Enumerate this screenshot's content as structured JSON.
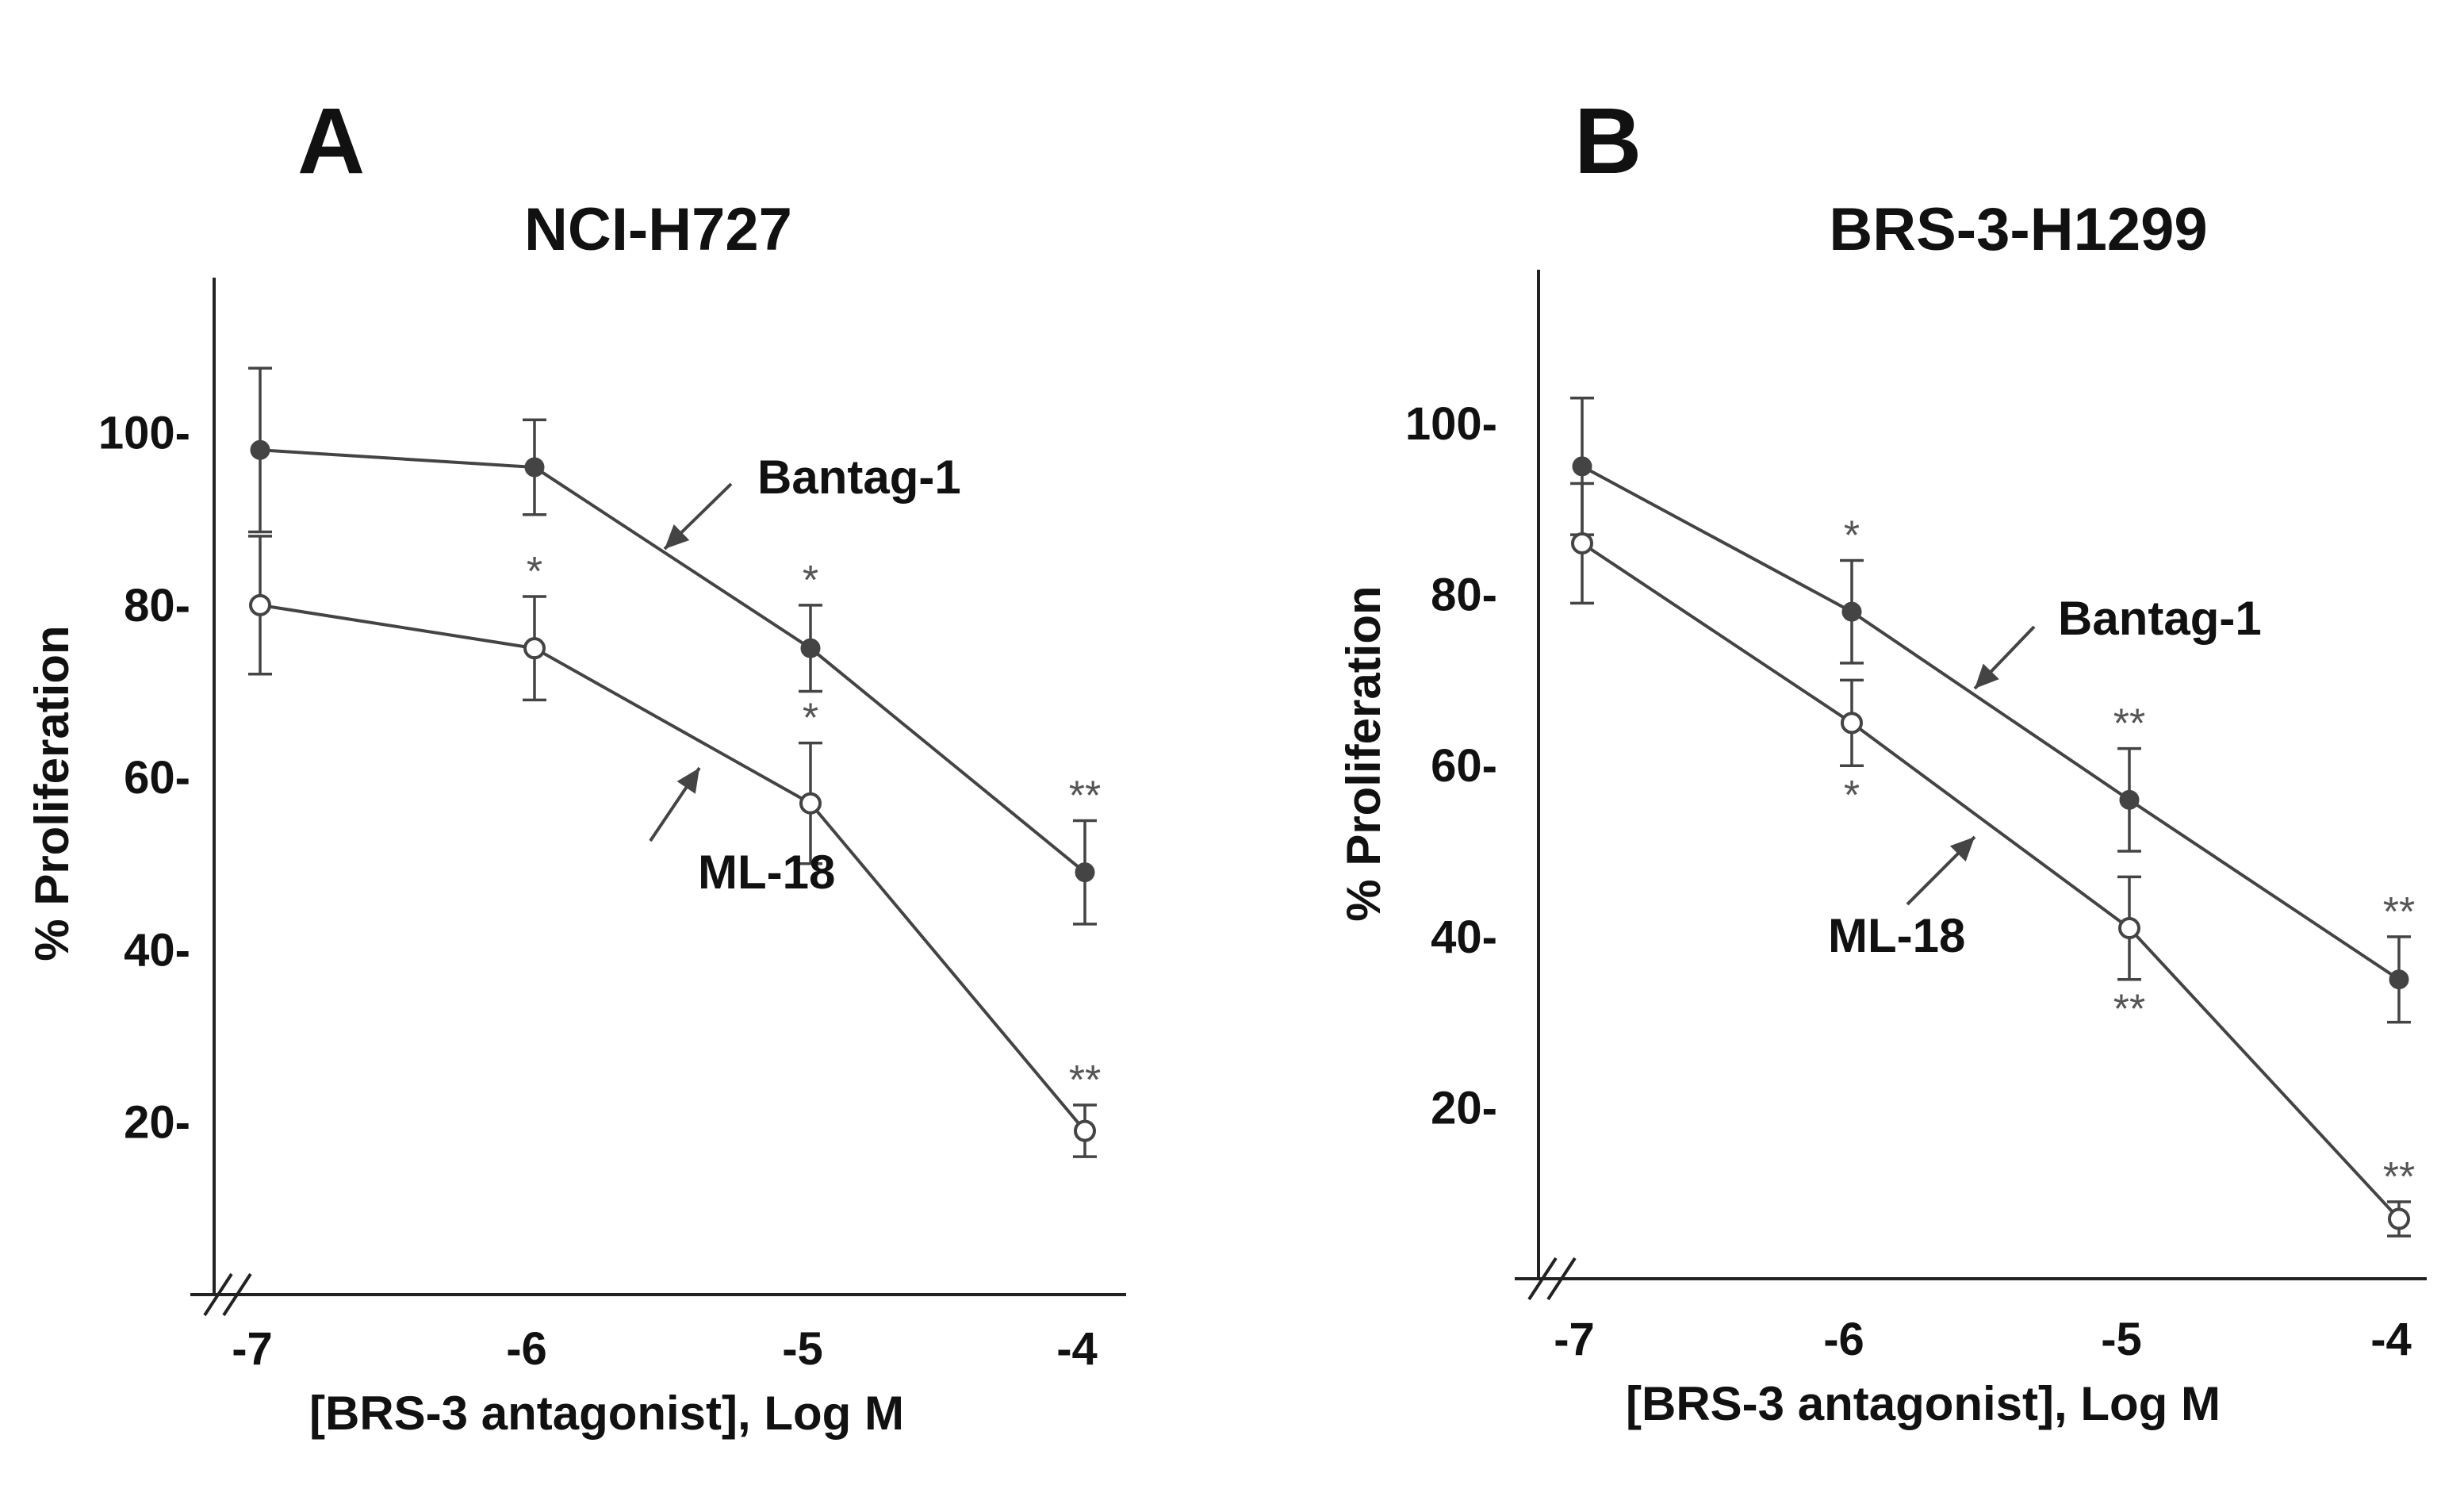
{
  "colors": {
    "line": "#444444",
    "axis": "#222222",
    "text": "#111111",
    "sig": "#555555"
  },
  "chart_data": [
    {
      "type": "line",
      "panel": "A",
      "title": "NCI-H727",
      "xlabel": "[BRS-3 antagonist], Log M",
      "ylabel": "% Proliferation",
      "x": [
        -7,
        -6,
        -5,
        -4
      ],
      "xticks": [
        "-7",
        "-6",
        "-5",
        "-4"
      ],
      "yticks": [
        "20-",
        "40-",
        "60-",
        "80-",
        "100-"
      ],
      "ytick_values": [
        20,
        40,
        60,
        80,
        100
      ],
      "xlim": [
        -7.15,
        -3.8
      ],
      "ylim": [
        0,
        118
      ],
      "axis_break": true,
      "series": [
        {
          "name": "Bantag-1",
          "marker": "filled",
          "values": [
            98,
            96,
            75,
            49
          ],
          "errors": [
            9.5,
            5.5,
            5,
            6
          ],
          "significance": [
            "",
            "",
            "*",
            "**"
          ]
        },
        {
          "name": "ML-18",
          "marker": "open",
          "values": [
            80,
            75,
            57,
            19
          ],
          "errors": [
            8,
            6,
            7,
            3
          ],
          "significance": [
            "",
            "*",
            "*",
            "**"
          ]
        }
      ]
    },
    {
      "type": "line",
      "panel": "B",
      "title": "BRS-3-H1299",
      "xlabel": "[BRS-3 antagonist], Log M",
      "ylabel": "% Proliferation",
      "x": [
        -7,
        -6,
        -5,
        -4
      ],
      "xticks": [
        "-7",
        "-6",
        "-5",
        "-4"
      ],
      "yticks": [
        "20-",
        "40-",
        "60-",
        "80-",
        "100-"
      ],
      "ytick_values": [
        20,
        40,
        60,
        80,
        100
      ],
      "xlim": [
        -7.15,
        -3.8
      ],
      "ylim": [
        0,
        118
      ],
      "axis_break": true,
      "series": [
        {
          "name": "Bantag-1",
          "marker": "filled",
          "values": [
            95,
            78,
            56,
            35
          ],
          "errors": [
            8,
            6,
            6,
            5
          ],
          "significance": [
            "",
            "*",
            "**",
            "**"
          ]
        },
        {
          "name": "ML-18",
          "marker": "open",
          "values": [
            86,
            65,
            41,
            7
          ],
          "errors": [
            7,
            5,
            6,
            2
          ],
          "significance": [
            "",
            "*",
            "**",
            "**"
          ]
        }
      ]
    }
  ]
}
